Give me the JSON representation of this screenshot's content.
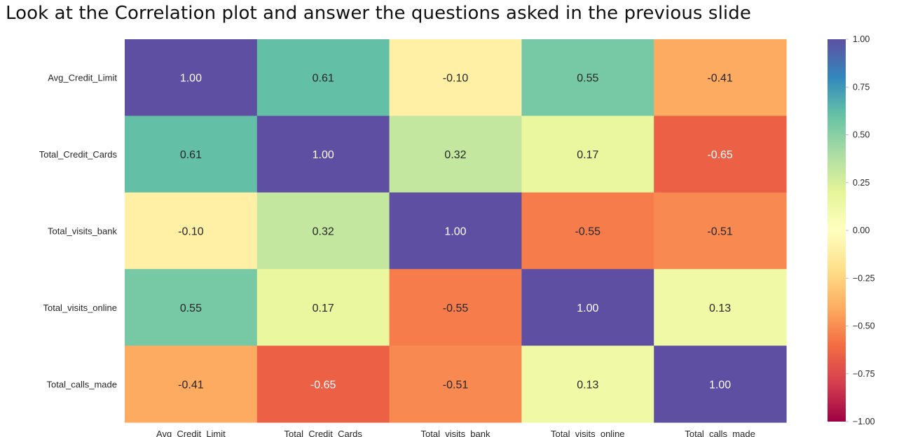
{
  "slide": {
    "title": "Look at the Correlation plot and answer the questions asked in the previous slide"
  },
  "chart_data": {
    "type": "heatmap",
    "rows": [
      "Avg_Credit_Limit",
      "Total_Credit_Cards",
      "Total_visits_bank",
      "Total_visits_online",
      "Total_calls_made"
    ],
    "columns": [
      "Avg_Credit_Limit",
      "Total_Credit_Cards",
      "Total_visits_bank",
      "Total_visits_online",
      "Total_calls_made"
    ],
    "values": [
      [
        1.0,
        0.61,
        -0.1,
        0.55,
        -0.41
      ],
      [
        0.61,
        1.0,
        0.32,
        0.17,
        -0.65
      ],
      [
        -0.1,
        0.32,
        1.0,
        -0.55,
        -0.51
      ],
      [
        0.55,
        0.17,
        -0.55,
        1.0,
        0.13
      ],
      [
        -0.41,
        -0.65,
        -0.51,
        0.13,
        1.0
      ]
    ],
    "value_format": "0.00",
    "colormap": "Spectral",
    "vmin": -1.0,
    "vmax": 1.0,
    "colorbar": {
      "ticks": [
        1.0,
        0.75,
        0.5,
        0.25,
        0.0,
        -0.25,
        -0.5,
        -0.75,
        -1.0
      ],
      "tick_labels": [
        "1.00",
        "0.75",
        "0.50",
        "0.25",
        "0.00",
        "−0.25",
        "−0.50",
        "−0.75",
        "−1.00"
      ],
      "placement": "right"
    },
    "colors": {
      "label_dark": "#262626",
      "label_light": "#ffffff"
    },
    "grid": false
  }
}
